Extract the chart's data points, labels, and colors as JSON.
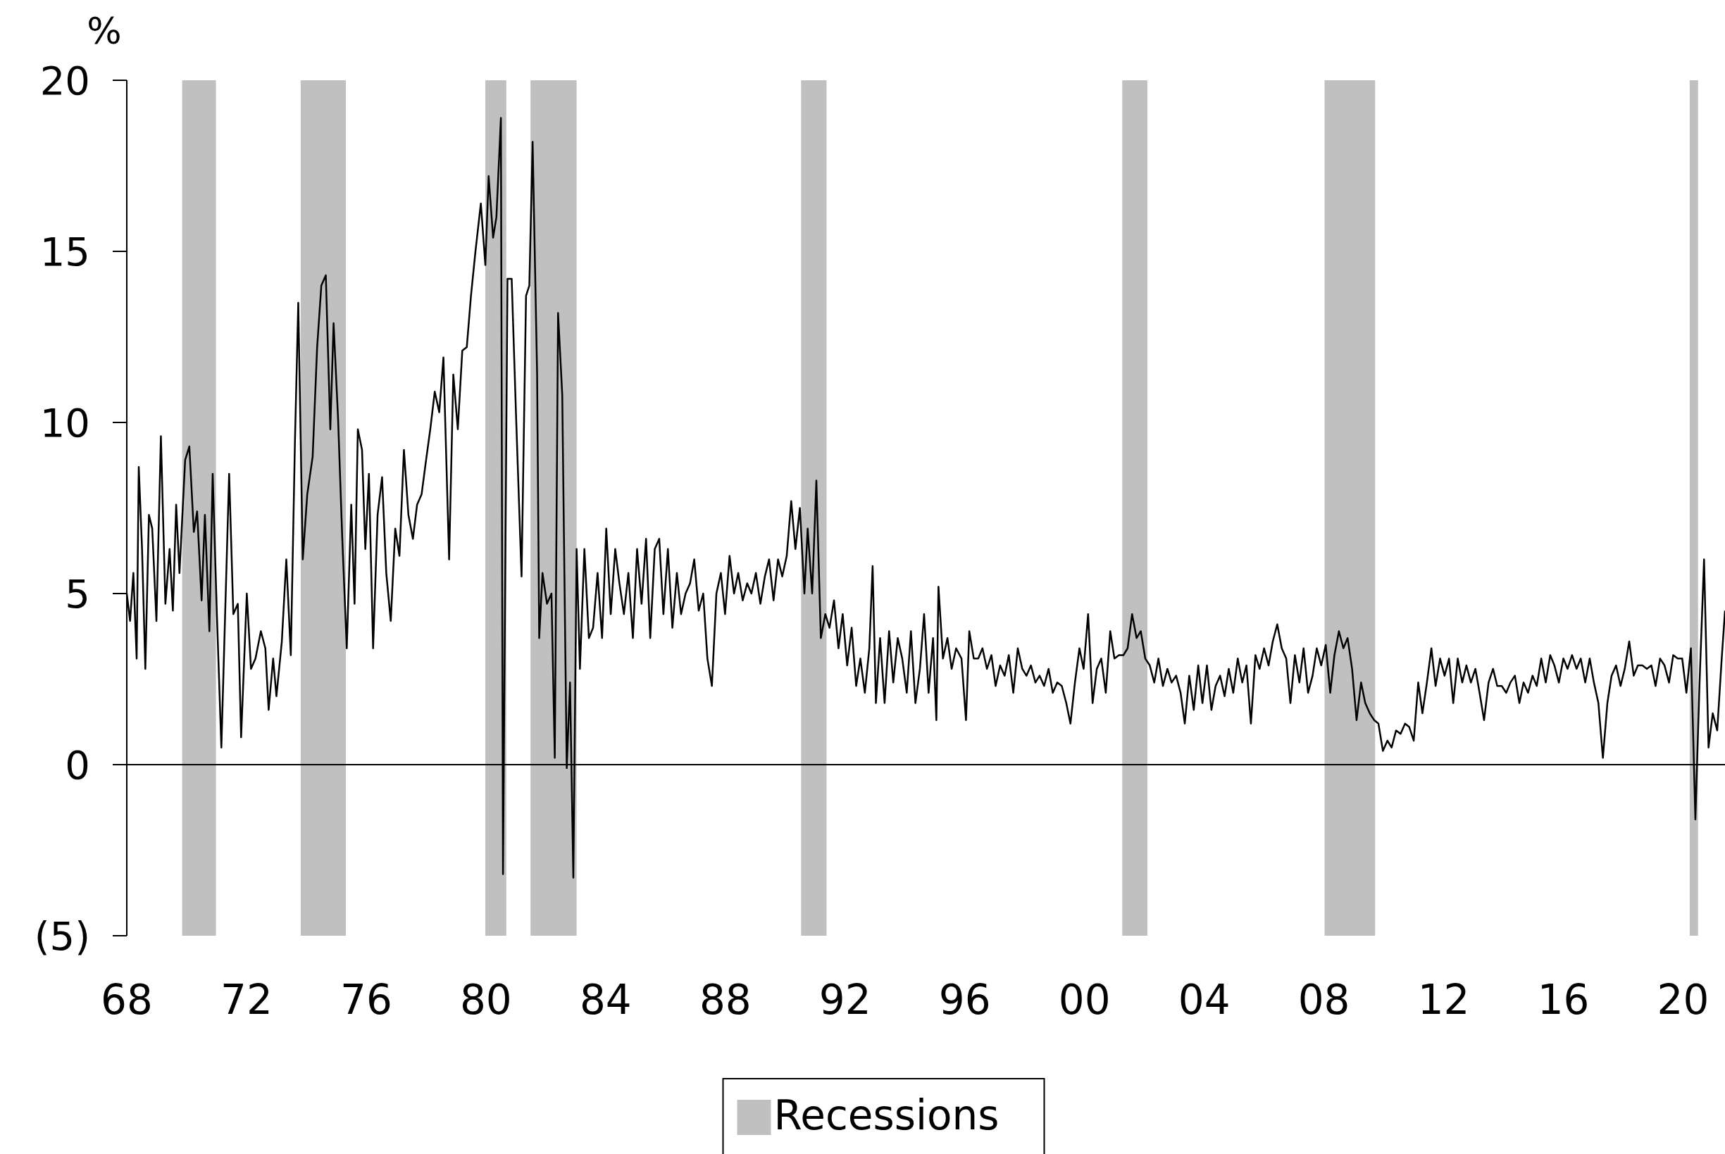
{
  "chart_data": {
    "type": "line",
    "ylabel": "%",
    "xlim": [
      1968,
      2021.4
    ],
    "ylim": [
      -5,
      20
    ],
    "xticks": [
      {
        "value": 1968,
        "label": "68"
      },
      {
        "value": 1972,
        "label": "72"
      },
      {
        "value": 1976,
        "label": "76"
      },
      {
        "value": 1980,
        "label": "80"
      },
      {
        "value": 1984,
        "label": "84"
      },
      {
        "value": 1988,
        "label": "88"
      },
      {
        "value": 1992,
        "label": "92"
      },
      {
        "value": 1996,
        "label": "96"
      },
      {
        "value": 2000,
        "label": "00"
      },
      {
        "value": 2004,
        "label": "04"
      },
      {
        "value": 2008,
        "label": "08"
      },
      {
        "value": 2012,
        "label": "12"
      },
      {
        "value": 2016,
        "label": "16"
      },
      {
        "value": 2020,
        "label": "20"
      }
    ],
    "yticks": [
      {
        "value": -5,
        "label": "(5)"
      },
      0,
      5,
      10,
      15,
      20
    ],
    "grid": false,
    "legend": "bottom",
    "marker": "none",
    "line_style": "solid",
    "ref_lines": [
      {
        "axis": "y",
        "value": 0,
        "color": "#000000"
      }
    ],
    "bands": [
      {
        "axis": "x",
        "from": 1969.85,
        "to": 1970.98,
        "label": "Recessions",
        "color": "#c0c0c0"
      },
      {
        "axis": "x",
        "from": 1973.81,
        "to": 1975.32,
        "color": "#c0c0c0"
      },
      {
        "axis": "x",
        "from": 1979.98,
        "to": 1980.68,
        "color": "#c0c0c0"
      },
      {
        "axis": "x",
        "from": 1981.49,
        "to": 1983.03,
        "color": "#c0c0c0"
      },
      {
        "axis": "x",
        "from": 1990.53,
        "to": 1991.38,
        "color": "#c0c0c0"
      },
      {
        "axis": "x",
        "from": 2001.26,
        "to": 2002.1,
        "color": "#c0c0c0"
      },
      {
        "axis": "x",
        "from": 2008.02,
        "to": 2009.71,
        "color": "#c0c0c0"
      },
      {
        "axis": "x",
        "from": 2020.22,
        "to": 2020.5,
        "color": "#c0c0c0"
      }
    ],
    "series": [
      {
        "color": "#000000",
        "x": [
          1968.0,
          1968.11,
          1968.22,
          1968.33,
          1968.4,
          1968.51,
          1968.62,
          1968.74,
          1968.85,
          1968.99,
          1969.14,
          1969.29,
          1969.43,
          1969.54,
          1969.65,
          1969.76,
          1969.95,
          1970.09,
          1970.24,
          1970.35,
          1970.5,
          1970.61,
          1970.76,
          1970.87,
          1971.01,
          1971.16,
          1971.27,
          1971.42,
          1971.56,
          1971.71,
          1971.82,
          1972.01,
          1972.15,
          1972.3,
          1972.48,
          1972.63,
          1972.74,
          1972.89,
          1973.0,
          1973.18,
          1973.33,
          1973.48,
          1973.62,
          1973.73,
          1973.88,
          1974.03,
          1974.21,
          1974.36,
          1974.5,
          1974.65,
          1974.8,
          1974.91,
          1975.06,
          1975.2,
          1975.35,
          1975.5,
          1975.61,
          1975.72,
          1975.86,
          1975.97,
          1976.09,
          1976.23,
          1976.38,
          1976.53,
          1976.67,
          1976.82,
          1976.97,
          1977.11,
          1977.26,
          1977.41,
          1977.56,
          1977.7,
          1977.85,
          1978.0,
          1978.14,
          1978.29,
          1978.44,
          1978.58,
          1978.77,
          1978.91,
          1979.06,
          1979.21,
          1979.36,
          1979.5,
          1979.65,
          1979.83,
          1979.98,
          1980.09,
          1980.24,
          1980.35,
          1980.5,
          1980.57,
          1980.72,
          1980.86,
          1981.01,
          1981.19,
          1981.34,
          1981.45,
          1981.56,
          1981.71,
          1981.78,
          1981.89,
          1982.04,
          1982.19,
          1982.3,
          1982.41,
          1982.55,
          1982.7,
          1982.81,
          1982.92,
          1983.03,
          1983.14,
          1983.29,
          1983.44,
          1983.58,
          1983.73,
          1983.88,
          1984.02,
          1984.17,
          1984.32,
          1984.46,
          1984.61,
          1984.76,
          1984.91,
          1985.05,
          1985.2,
          1985.35,
          1985.49,
          1985.64,
          1985.79,
          1985.93,
          1986.08,
          1986.23,
          1986.38,
          1986.52,
          1986.67,
          1986.82,
          1986.96,
          1987.11,
          1987.26,
          1987.4,
          1987.55,
          1987.7,
          1987.85,
          1987.99,
          1988.14,
          1988.29,
          1988.43,
          1988.58,
          1988.73,
          1988.87,
          1989.02,
          1989.17,
          1989.32,
          1989.46,
          1989.61,
          1989.76,
          1989.9,
          1990.05,
          1990.2,
          1990.34,
          1990.49,
          1990.64,
          1990.75,
          1990.9,
          1991.04,
          1991.19,
          1991.34,
          1991.48,
          1991.63,
          1991.78,
          1991.92,
          1992.07,
          1992.22,
          1992.37,
          1992.51,
          1992.66,
          1992.81,
          1992.92,
          1993.03,
          1993.17,
          1993.32,
          1993.47,
          1993.61,
          1993.76,
          1993.91,
          1994.06,
          1994.2,
          1994.35,
          1994.5,
          1994.64,
          1994.79,
          1994.94,
          1995.05,
          1995.12,
          1995.27,
          1995.42,
          1995.56,
          1995.71,
          1995.89,
          1996.04,
          1996.15,
          1996.3,
          1996.45,
          1996.59,
          1996.74,
          1996.89,
          1997.03,
          1997.18,
          1997.33,
          1997.47,
          1997.62,
          1997.77,
          1997.92,
          1998.06,
          1998.21,
          1998.36,
          1998.5,
          1998.65,
          1998.8,
          1998.94,
          1999.09,
          1999.24,
          1999.39,
          1999.53,
          1999.68,
          1999.83,
          1999.97,
          2000.12,
          2000.27,
          2000.41,
          2000.56,
          2000.71,
          2000.86,
          2001.0,
          2001.15,
          2001.3,
          2001.44,
          2001.59,
          2001.74,
          2001.88,
          2002.03,
          2002.18,
          2002.33,
          2002.47,
          2002.62,
          2002.77,
          2002.91,
          2003.06,
          2003.21,
          2003.35,
          2003.5,
          2003.65,
          2003.8,
          2003.94,
          2004.09,
          2004.24,
          2004.38,
          2004.53,
          2004.68,
          2004.82,
          2004.97,
          2005.12,
          2005.27,
          2005.41,
          2005.56,
          2005.71,
          2005.85,
          2006.0,
          2006.15,
          2006.29,
          2006.44,
          2006.59,
          2006.74,
          2006.88,
          2007.03,
          2007.18,
          2007.32,
          2007.47,
          2007.62,
          2007.76,
          2007.91,
          2008.06,
          2008.21,
          2008.35,
          2008.5,
          2008.65,
          2008.79,
          2008.94,
          2009.09,
          2009.24,
          2009.38,
          2009.53,
          2009.68,
          2009.82,
          2009.97,
          2010.12,
          2010.26,
          2010.41,
          2010.56,
          2010.71,
          2010.85,
          2011.0,
          2011.15,
          2011.29,
          2011.44,
          2011.59,
          2011.73,
          2011.88,
          2012.03,
          2012.18,
          2012.32,
          2012.47,
          2012.62,
          2012.76,
          2012.91,
          2013.06,
          2013.2,
          2013.35,
          2013.5,
          2013.65,
          2013.79,
          2013.94,
          2014.09,
          2014.23,
          2014.38,
          2014.53,
          2014.67,
          2014.82,
          2014.97,
          2015.11,
          2015.26,
          2015.41,
          2015.56,
          2015.7,
          2015.85,
          2016.0,
          2016.14,
          2016.29,
          2016.44,
          2016.58,
          2016.73,
          2016.88,
          2017.02,
          2017.17,
          2017.32,
          2017.47,
          2017.61,
          2017.76,
          2017.91,
          2018.05,
          2018.2,
          2018.35,
          2018.49,
          2018.64,
          2018.79,
          2018.94,
          2019.08,
          2019.23,
          2019.38,
          2019.53,
          2019.67,
          2019.82,
          2019.97,
          2020.11,
          2020.26,
          2020.41,
          2020.55,
          2020.7,
          2020.85,
          2020.99,
          2021.14,
          2021.29,
          2021.4
        ],
        "values": [
          5.0,
          4.2,
          5.6,
          3.1,
          8.7,
          6.3,
          2.8,
          7.3,
          6.9,
          4.2,
          9.6,
          4.7,
          6.3,
          4.5,
          7.6,
          5.6,
          8.9,
          9.3,
          6.8,
          7.4,
          4.8,
          7.3,
          3.9,
          8.5,
          4.4,
          0.5,
          3.9,
          8.5,
          4.4,
          4.7,
          0.8,
          5.0,
          2.8,
          3.1,
          3.9,
          3.4,
          1.6,
          3.1,
          2.0,
          3.6,
          6.0,
          3.2,
          9.5,
          13.5,
          6.0,
          7.9,
          9.0,
          12.2,
          14.0,
          14.3,
          9.8,
          12.9,
          10.1,
          6.6,
          3.4,
          7.6,
          4.7,
          9.8,
          9.2,
          6.3,
          8.5,
          3.4,
          7.3,
          8.4,
          5.6,
          4.2,
          6.9,
          6.1,
          9.2,
          7.3,
          6.6,
          7.6,
          7.9,
          8.9,
          9.8,
          10.9,
          10.3,
          11.9,
          6.0,
          11.4,
          9.8,
          12.1,
          12.2,
          13.7,
          15.0,
          16.4,
          14.6,
          17.2,
          15.4,
          16.0,
          18.9,
          -3.2,
          14.2,
          14.2,
          10.1,
          5.5,
          13.7,
          14.0,
          18.2,
          11.4,
          3.7,
          5.6,
          4.7,
          5.0,
          0.2,
          13.2,
          10.8,
          -0.1,
          2.4,
          -3.3,
          6.3,
          2.8,
          6.3,
          3.7,
          4.0,
          5.6,
          3.7,
          6.9,
          4.4,
          6.3,
          5.3,
          4.4,
          5.6,
          3.7,
          6.3,
          4.7,
          6.6,
          3.7,
          6.3,
          6.6,
          4.4,
          6.3,
          4.0,
          5.6,
          4.4,
          5.0,
          5.3,
          6.0,
          4.5,
          5.0,
          3.1,
          2.3,
          5.0,
          5.6,
          4.4,
          6.1,
          5.0,
          5.6,
          4.8,
          5.3,
          5.0,
          5.6,
          4.7,
          5.5,
          6.0,
          4.8,
          6.0,
          5.5,
          6.1,
          7.7,
          6.3,
          7.5,
          5.0,
          6.9,
          5.0,
          8.3,
          3.7,
          4.4,
          4.0,
          4.8,
          3.4,
          4.4,
          2.9,
          4.0,
          2.3,
          3.1,
          2.1,
          3.4,
          5.8,
          1.8,
          3.7,
          1.8,
          3.9,
          2.4,
          3.7,
          3.1,
          2.1,
          3.9,
          1.8,
          2.8,
          4.4,
          2.1,
          3.7,
          1.3,
          5.2,
          3.1,
          3.7,
          2.8,
          3.4,
          3.1,
          1.3,
          3.9,
          3.1,
          3.1,
          3.4,
          2.8,
          3.2,
          2.3,
          2.9,
          2.6,
          3.2,
          2.1,
          3.4,
          2.8,
          2.6,
          2.9,
          2.4,
          2.6,
          2.3,
          2.8,
          2.1,
          2.4,
          2.3,
          1.8,
          1.2,
          2.4,
          3.4,
          2.8,
          4.4,
          1.8,
          2.8,
          3.1,
          2.1,
          3.9,
          3.1,
          3.2,
          3.2,
          3.4,
          4.4,
          3.7,
          3.9,
          3.1,
          2.9,
          2.4,
          3.1,
          2.3,
          2.8,
          2.4,
          2.6,
          2.1,
          1.2,
          2.6,
          1.6,
          2.9,
          1.8,
          2.9,
          1.6,
          2.3,
          2.6,
          2.0,
          2.8,
          2.1,
          3.1,
          2.4,
          2.9,
          1.2,
          3.2,
          2.8,
          3.4,
          2.9,
          3.6,
          4.1,
          3.4,
          3.1,
          1.8,
          3.2,
          2.4,
          3.4,
          2.1,
          2.6,
          3.4,
          2.9,
          3.5,
          2.1,
          3.2,
          3.9,
          3.4,
          3.7,
          2.8,
          1.3,
          2.4,
          1.8,
          1.5,
          1.3,
          1.2,
          0.4,
          0.7,
          0.5,
          1.0,
          0.9,
          1.2,
          1.1,
          0.7,
          2.4,
          1.5,
          2.4,
          3.4,
          2.3,
          3.1,
          2.6,
          3.1,
          1.8,
          3.1,
          2.4,
          2.9,
          2.4,
          2.8,
          2.1,
          1.3,
          2.4,
          2.8,
          2.3,
          2.3,
          2.1,
          2.4,
          2.6,
          1.8,
          2.4,
          2.1,
          2.6,
          2.3,
          3.1,
          2.4,
          3.2,
          2.9,
          2.4,
          3.1,
          2.8,
          3.2,
          2.8,
          3.1,
          2.4,
          3.1,
          2.4,
          1.8,
          0.2,
          1.8,
          2.6,
          2.9,
          2.3,
          2.8,
          3.6,
          2.6,
          2.9,
          2.9,
          2.8,
          2.9,
          2.3,
          3.1,
          2.9,
          2.4,
          3.2,
          3.1,
          3.1,
          2.1,
          3.4,
          -1.6,
          2.4,
          6.0,
          0.5,
          1.5,
          1.0,
          3.1,
          4.5
        ]
      }
    ]
  }
}
